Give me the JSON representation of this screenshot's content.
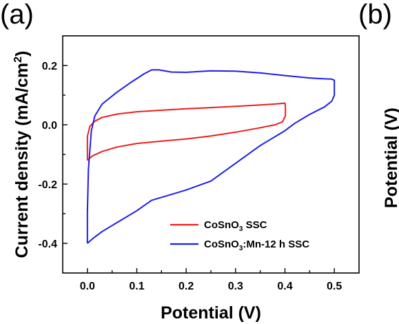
{
  "panels": {
    "left_label": "(a)",
    "right_label": "(b)",
    "right_ylabel": "Potential (V)"
  },
  "chart_data": {
    "type": "line",
    "title": "",
    "xlabel": "Potential (V)",
    "ylabel": "Current density (mA/cm²)",
    "xlim": [
      -0.05,
      0.55
    ],
    "ylim": [
      -0.5,
      0.3
    ],
    "xticks": [
      0.0,
      0.1,
      0.2,
      0.3,
      0.4,
      0.5
    ],
    "xtick_labels": [
      "0.0",
      "0.1",
      "0.2",
      "0.3",
      "0.4",
      "0.5"
    ],
    "yticks": [
      -0.4,
      -0.2,
      0.0,
      0.2
    ],
    "ytick_labels": [
      "-0.4",
      "-0.2",
      "0.0",
      "0.2"
    ],
    "grid": false,
    "legend_position": "bottom-right",
    "series": [
      {
        "name_parts": [
          "CoSnO",
          "3",
          " SSC"
        ],
        "color": "#ee1c1c",
        "points": [
          [
            0.0,
            -0.12
          ],
          [
            0.0,
            -0.09
          ],
          [
            0.0,
            -0.04
          ],
          [
            0.005,
            -0.005
          ],
          [
            0.015,
            0.012
          ],
          [
            0.03,
            0.025
          ],
          [
            0.06,
            0.036
          ],
          [
            0.1,
            0.044
          ],
          [
            0.15,
            0.049
          ],
          [
            0.2,
            0.054
          ],
          [
            0.25,
            0.058
          ],
          [
            0.3,
            0.062
          ],
          [
            0.35,
            0.067
          ],
          [
            0.38,
            0.07
          ],
          [
            0.4,
            0.073
          ],
          [
            0.401,
            0.06
          ],
          [
            0.401,
            0.03
          ],
          [
            0.395,
            0.01
          ],
          [
            0.38,
            0.0
          ],
          [
            0.35,
            -0.01
          ],
          [
            0.3,
            -0.025
          ],
          [
            0.25,
            -0.038
          ],
          [
            0.2,
            -0.048
          ],
          [
            0.15,
            -0.055
          ],
          [
            0.1,
            -0.063
          ],
          [
            0.06,
            -0.075
          ],
          [
            0.03,
            -0.09
          ],
          [
            0.01,
            -0.105
          ],
          [
            0.0,
            -0.12
          ]
        ]
      },
      {
        "name_parts": [
          "CoSnO",
          "3",
          ":Mn-12 h SSC"
        ],
        "color": "#1c1cee",
        "points": [
          [
            0.0,
            -0.4
          ],
          [
            0.0,
            -0.3
          ],
          [
            0.002,
            -0.15
          ],
          [
            0.008,
            -0.02
          ],
          [
            0.015,
            0.03
          ],
          [
            0.03,
            0.07
          ],
          [
            0.06,
            0.11
          ],
          [
            0.09,
            0.145
          ],
          [
            0.115,
            0.172
          ],
          [
            0.13,
            0.185
          ],
          [
            0.145,
            0.185
          ],
          [
            0.17,
            0.178
          ],
          [
            0.2,
            0.177
          ],
          [
            0.25,
            0.182
          ],
          [
            0.3,
            0.181
          ],
          [
            0.35,
            0.175
          ],
          [
            0.4,
            0.166
          ],
          [
            0.45,
            0.158
          ],
          [
            0.48,
            0.155
          ],
          [
            0.495,
            0.154
          ],
          [
            0.5,
            0.15
          ],
          [
            0.5,
            0.1
          ],
          [
            0.495,
            0.08
          ],
          [
            0.48,
            0.06
          ],
          [
            0.45,
            0.035
          ],
          [
            0.42,
            0.005
          ],
          [
            0.4,
            -0.02
          ],
          [
            0.35,
            -0.07
          ],
          [
            0.3,
            -0.13
          ],
          [
            0.25,
            -0.19
          ],
          [
            0.2,
            -0.22
          ],
          [
            0.17,
            -0.235
          ],
          [
            0.13,
            -0.255
          ],
          [
            0.1,
            -0.29
          ],
          [
            0.06,
            -0.33
          ],
          [
            0.03,
            -0.36
          ],
          [
            0.01,
            -0.385
          ],
          [
            0.0,
            -0.4
          ]
        ]
      }
    ]
  }
}
